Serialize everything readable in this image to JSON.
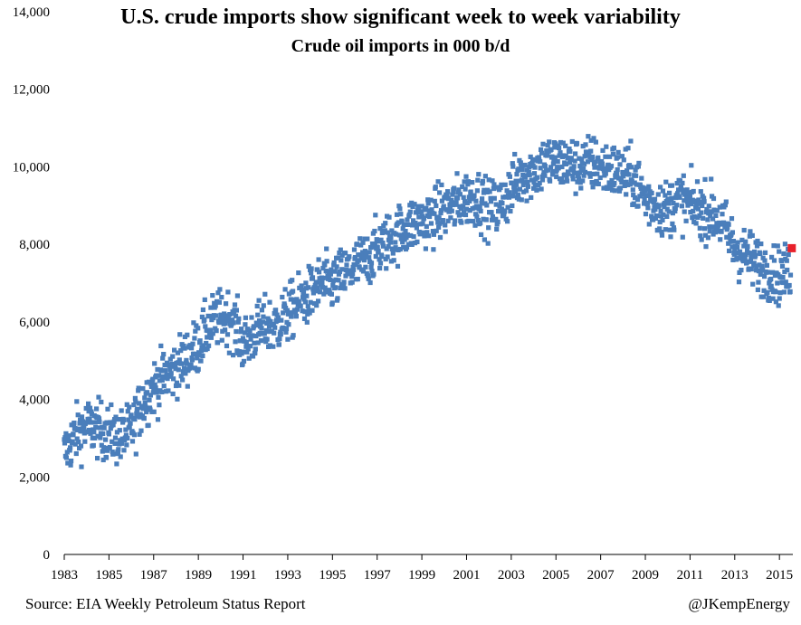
{
  "title": "U.S. crude imports show significant week to week variability",
  "subtitle": "Crude oil imports in 000 b/d",
  "source": "Source: EIA Weekly Petroleum Status Report",
  "credit": "@JKempEnergy",
  "colors": {
    "series": "#4a7ebb",
    "latest": "#e8202a",
    "axis": "#000000"
  },
  "chart_data": {
    "type": "scatter",
    "title": "U.S. crude imports show significant week to week variability",
    "subtitle": "Crude oil imports in 000 b/d",
    "xlabel": "",
    "ylabel": "",
    "xlim": [
      1983,
      2015.6
    ],
    "ylim": [
      0,
      14000
    ],
    "grid": false,
    "x_ticks": [
      "1983",
      "1985",
      "1987",
      "1989",
      "1991",
      "1993",
      "1995",
      "1997",
      "1999",
      "2001",
      "2003",
      "2005",
      "2007",
      "2009",
      "2011",
      "2013",
      "2015"
    ],
    "y_ticks": [
      "0",
      "2,000",
      "4,000",
      "6,000",
      "8,000",
      "10,000",
      "12,000",
      "14,000"
    ],
    "trend_points": [
      [
        1983.0,
        2600
      ],
      [
        1983.5,
        3100
      ],
      [
        1984.0,
        3300
      ],
      [
        1984.5,
        3250
      ],
      [
        1985.0,
        3100
      ],
      [
        1985.5,
        3000
      ],
      [
        1986.0,
        3200
      ],
      [
        1986.5,
        3900
      ],
      [
        1987.0,
        4300
      ],
      [
        1987.5,
        4600
      ],
      [
        1988.0,
        4800
      ],
      [
        1988.5,
        5100
      ],
      [
        1989.0,
        5400
      ],
      [
        1989.5,
        5900
      ],
      [
        1990.0,
        6100
      ],
      [
        1990.5,
        6100
      ],
      [
        1991.0,
        5400
      ],
      [
        1991.5,
        5700
      ],
      [
        1992.0,
        5900
      ],
      [
        1992.5,
        5900
      ],
      [
        1993.0,
        6200
      ],
      [
        1993.5,
        6500
      ],
      [
        1994.0,
        6700
      ],
      [
        1994.5,
        7000
      ],
      [
        1995.0,
        7000
      ],
      [
        1995.5,
        7200
      ],
      [
        1996.0,
        7400
      ],
      [
        1996.5,
        7600
      ],
      [
        1997.0,
        7900
      ],
      [
        1997.5,
        8100
      ],
      [
        1998.0,
        8300
      ],
      [
        1998.5,
        8500
      ],
      [
        1999.0,
        8600
      ],
      [
        1999.5,
        8700
      ],
      [
        2000.0,
        8900
      ],
      [
        2000.5,
        9000
      ],
      [
        2001.0,
        9200
      ],
      [
        2001.5,
        9200
      ],
      [
        2002.0,
        8900
      ],
      [
        2002.5,
        9000
      ],
      [
        2003.0,
        9400
      ],
      [
        2003.5,
        9800
      ],
      [
        2004.0,
        9900
      ],
      [
        2004.5,
        10100
      ],
      [
        2005.0,
        10100
      ],
      [
        2005.5,
        10100
      ],
      [
        2006.0,
        10000
      ],
      [
        2006.5,
        10100
      ],
      [
        2007.0,
        10000
      ],
      [
        2007.5,
        9900
      ],
      [
        2008.0,
        9800
      ],
      [
        2008.5,
        9700
      ],
      [
        2009.0,
        9200
      ],
      [
        2009.5,
        9000
      ],
      [
        2010.0,
        8900
      ],
      [
        2010.5,
        9200
      ],
      [
        2011.0,
        9000
      ],
      [
        2011.5,
        8900
      ],
      [
        2012.0,
        8800
      ],
      [
        2012.5,
        8500
      ],
      [
        2013.0,
        7900
      ],
      [
        2013.5,
        7700
      ],
      [
        2014.0,
        7500
      ],
      [
        2014.5,
        7300
      ],
      [
        2015.0,
        7200
      ],
      [
        2015.5,
        7300
      ]
    ],
    "spread": 650,
    "points_per_year": 52,
    "latest_point": {
      "x": 2015.55,
      "y": 7900
    }
  }
}
